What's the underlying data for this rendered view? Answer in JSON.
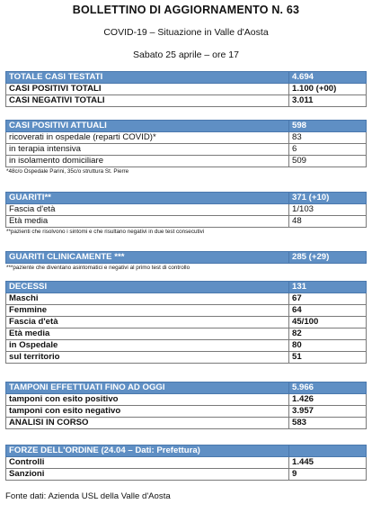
{
  "header": {
    "title": "BOLLETTINO DI AGGIORNAMENTO N. 63",
    "subtitle": "COVID-19 – Situazione in Valle d'Aosta",
    "date": "Sabato 25 aprile – ore 17"
  },
  "sections": {
    "casi_testati": {
      "rows": [
        {
          "label": "TOTALE CASI TESTATI",
          "value": "4.694"
        },
        {
          "label": "CASI POSITIVI TOTALI",
          "value": "1.100 (+00)"
        },
        {
          "label": "CASI NEGATIVI TOTALI",
          "value": "3.011"
        }
      ]
    },
    "positivi_attuali": {
      "rows": [
        {
          "label": "CASI POSITIVI ATTUALI",
          "value": "598"
        },
        {
          "label": "ricoverati in ospedale (reparti COVID)*",
          "value": "83"
        },
        {
          "label": "in terapia intensiva",
          "value": "6"
        },
        {
          "label": "in isolamento domiciliare",
          "value": "509"
        }
      ],
      "note": "*48c/o Ospedale Parini, 35c/o struttura St. Pierre"
    },
    "guariti": {
      "rows": [
        {
          "label": "GUARITI**",
          "value": "371 (+10)"
        },
        {
          "label": "Fascia d'età",
          "value": "1/103"
        },
        {
          "label": "Età media",
          "value": "48"
        }
      ],
      "note": "**pazienti che risolvono i sintomi e che risultano negativi in due test consecutivi"
    },
    "guariti_clinicamente": {
      "rows": [
        {
          "label": "GUARITI CLINICAMENTE ***",
          "value": "285 (+29)"
        }
      ],
      "note": "***paziente che diventano asintomatici e negativi al primo test di controllo"
    },
    "decessi": {
      "rows": [
        {
          "label": "DECESSI",
          "value": "131"
        },
        {
          "label": "Maschi",
          "value": "67"
        },
        {
          "label": "Femmine",
          "value": "64"
        },
        {
          "label": "Fascia d'età",
          "value": "45/100"
        },
        {
          "label": "Età media",
          "value": "82"
        },
        {
          "label": "in Ospedale",
          "value": "80"
        },
        {
          "label": "sul territorio",
          "value": "51"
        }
      ]
    },
    "tamponi": {
      "rows": [
        {
          "label": "TAMPONI EFFETTUATI FINO AD OGGI",
          "value": "5.966"
        },
        {
          "label": "tamponi con esito positivo",
          "value": "1.426"
        },
        {
          "label": "tamponi con esito negativo",
          "value": "3.957"
        },
        {
          "label": "ANALISI IN CORSO",
          "value": "583"
        }
      ]
    },
    "forze_ordine": {
      "rows": [
        {
          "label": "FORZE DELL'ORDINE (24.04 – Dati: Prefettura)",
          "value": ""
        },
        {
          "label": "Controlli",
          "value": "1.445"
        },
        {
          "label": "Sanzioni",
          "value": "9"
        }
      ]
    }
  },
  "footer": "Fonte dati: Azienda USL della Valle d'Aosta",
  "colors": {
    "header_bg": "#5f8fc4",
    "header_text": "#ffffff",
    "border": "#7a7a7a"
  }
}
